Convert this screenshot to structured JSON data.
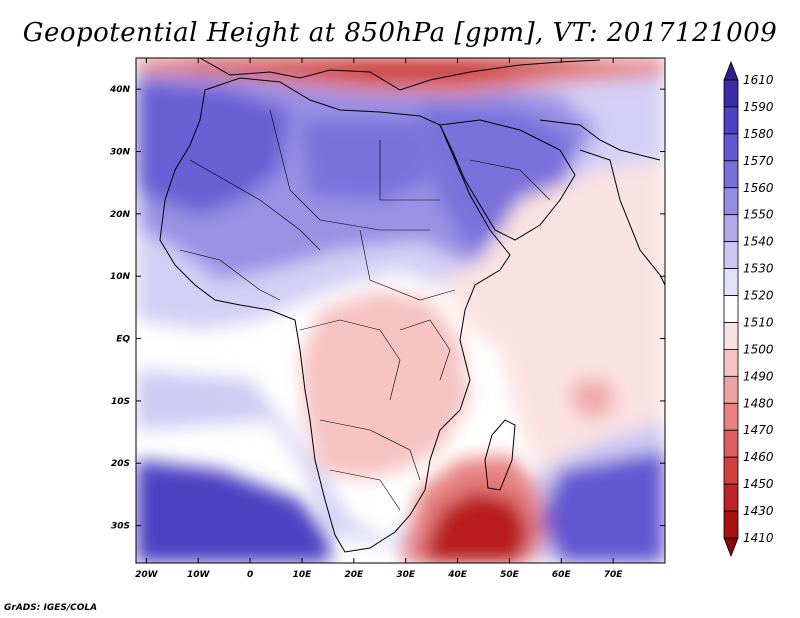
{
  "title": "Geopotential Height at 850hPa [gpm], VT: 2017121009",
  "footer": "GrADS: IGES/COLA",
  "map": {
    "region": "Africa and Middle East",
    "lat_range": [
      -36,
      45
    ],
    "lon_range": [
      -22,
      80
    ],
    "lat_labels": [
      "40N",
      "30N",
      "20N",
      "10N",
      "EQ",
      "10S",
      "20S",
      "30S"
    ],
    "lat_values": [
      40,
      30,
      20,
      10,
      0,
      -10,
      -20,
      -30
    ],
    "lon_labels": [
      "20W",
      "10W",
      "0",
      "10E",
      "20E",
      "30E",
      "40E",
      "50E",
      "60E",
      "70E"
    ],
    "lon_values": [
      -20,
      -10,
      0,
      10,
      20,
      30,
      40,
      50,
      60,
      70
    ]
  },
  "colorbar": {
    "labels": [
      "1610",
      "1590",
      "1580",
      "1570",
      "1560",
      "1550",
      "1540",
      "1530",
      "1520",
      "1510",
      "1500",
      "1490",
      "1480",
      "1470",
      "1460",
      "1450",
      "1430",
      "1410"
    ],
    "colors": [
      "#2d1e8c",
      "#3c2ba6",
      "#4f41c2",
      "#6557d1",
      "#7b6fdb",
      "#968ce3",
      "#b2aaeb",
      "#ccc7f3",
      "#e4e2fa",
      "#ffffff",
      "#fbe2e2",
      "#f6c3c3",
      "#efa2a2",
      "#e78080",
      "#dc5f5f",
      "#cf4141",
      "#bf2424",
      "#a80f0f",
      "#8a0707"
    ]
  },
  "shading": [
    {
      "id": "blue-nw",
      "color": "#6b5fd4"
    },
    {
      "id": "blue-sahara",
      "color": "#9a90e4"
    },
    {
      "id": "blue-arabia",
      "color": "#7b6fdb"
    },
    {
      "id": "blue-sw",
      "color": "#4f41c2"
    },
    {
      "id": "blue-se",
      "color": "#6557d1"
    },
    {
      "id": "red-mediterranean",
      "color": "#c52a2a"
    },
    {
      "id": "red-se-africa",
      "color": "#b81d1d"
    },
    {
      "id": "pink-central",
      "color": "#f6c3c3"
    },
    {
      "id": "pink-indian",
      "color": "#fbe2e2"
    }
  ]
}
